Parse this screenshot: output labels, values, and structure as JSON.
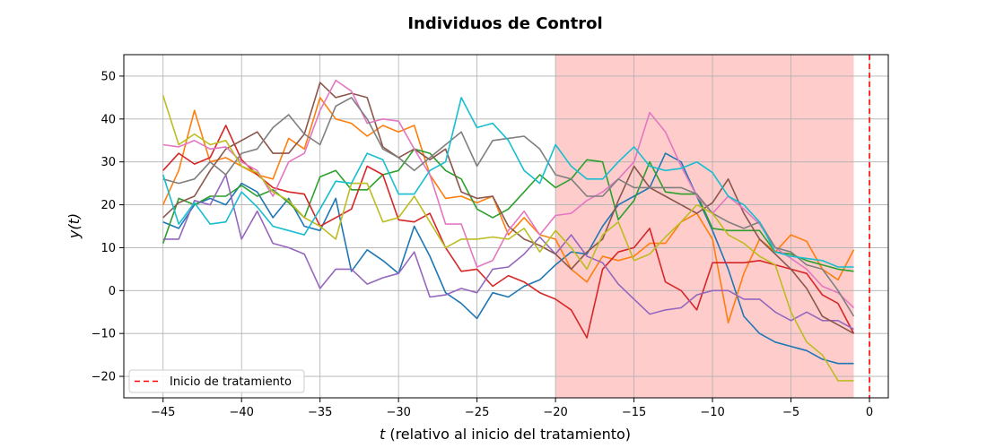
{
  "chart_data": {
    "type": "line",
    "title": "Individuos de Control",
    "xlabel_var": "t",
    "xlabel_rest": " (relativo al inicio del tratamiento)",
    "ylabel": "y(t)",
    "xlim": [
      -47.5,
      1.2
    ],
    "ylim": [
      -25,
      55
    ],
    "xticks": [
      -45,
      -40,
      -35,
      -30,
      -25,
      -20,
      -15,
      -10,
      -5,
      0
    ],
    "yticks": [
      -20,
      -10,
      0,
      10,
      20,
      30,
      40,
      50
    ],
    "grid": true,
    "treatment_region": [
      -20,
      -1
    ],
    "treatment_start": 0,
    "legend": {
      "position": "lower-left",
      "label": "Inicio de tratamiento"
    },
    "x": [
      -45,
      -44,
      -43,
      -42,
      -41,
      -40,
      -39,
      -38,
      -37,
      -36,
      -35,
      -34,
      -33,
      -32,
      -31,
      -30,
      -29,
      -28,
      -27,
      -26,
      -25,
      -24,
      -23,
      -22,
      -21,
      -20,
      -19,
      -18,
      -17,
      -16,
      -15,
      -14,
      -13,
      -12,
      -11,
      -10,
      -9,
      -8,
      -7,
      -6,
      -5,
      -4,
      -3,
      -2,
      -1
    ],
    "series": [
      {
        "color": "#1f77b4",
        "values": [
          16,
          14.5,
          20,
          21.5,
          20,
          25,
          23,
          17,
          21.5,
          15,
          14,
          21.5,
          4.5,
          9.5,
          7,
          4,
          15,
          8,
          -0.5,
          -3,
          -6.5,
          -0.5,
          -1.5,
          1,
          2.5,
          6,
          9,
          8.5,
          15,
          20,
          22,
          24,
          32,
          30,
          22,
          14,
          5,
          -6,
          -10,
          -12,
          -13,
          -14,
          -16,
          -17,
          -17
        ]
      },
      {
        "color": "#ff7f0e",
        "values": [
          20,
          28,
          42,
          30,
          31,
          29,
          27,
          26,
          35.5,
          33,
          45,
          40,
          39,
          36,
          38.5,
          37,
          38.5,
          27,
          21.5,
          22,
          20.5,
          22,
          13,
          17,
          13,
          12,
          5,
          2,
          8,
          7,
          8,
          11,
          11,
          16,
          18,
          12,
          -7.5,
          4,
          12,
          9,
          13,
          11.5,
          5,
          2.5,
          9.5
        ]
      },
      {
        "color": "#2ca02c",
        "values": [
          11,
          21.5,
          20,
          22,
          22,
          24.5,
          22,
          23.5,
          20.5,
          17,
          26.5,
          28,
          23.5,
          23.5,
          27,
          28,
          33,
          32,
          28,
          26,
          19,
          17,
          19,
          23,
          27,
          24,
          26,
          30.5,
          30,
          16.5,
          21,
          30,
          23,
          22.5,
          22.5,
          14.5,
          14,
          14,
          14,
          9,
          8.5,
          7,
          6,
          5,
          4.5
        ]
      },
      {
        "color": "#d62728",
        "values": [
          28,
          32,
          29.5,
          31,
          38.5,
          30.5,
          27,
          24,
          23,
          22.5,
          15,
          17,
          19,
          29,
          27,
          16.5,
          16,
          18,
          10,
          4.5,
          5,
          1,
          3.5,
          2,
          -0.5,
          -2,
          -4.5,
          -11,
          5,
          9,
          10,
          14.5,
          2,
          0,
          -4.5,
          6.5,
          6.5,
          6.5,
          7,
          6,
          5,
          4,
          -1,
          -3,
          -10
        ]
      },
      {
        "color": "#9467bd",
        "values": [
          12,
          12,
          21,
          20,
          27,
          12,
          18.5,
          11,
          10,
          8.5,
          0.5,
          5,
          5,
          1.5,
          3,
          4,
          9,
          -1.5,
          -1,
          0.5,
          -0.5,
          5,
          5.5,
          8.5,
          12.5,
          8.5,
          13,
          8,
          6.5,
          1.5,
          -2,
          -5.5,
          -4.5,
          -4,
          -1,
          0,
          0,
          -2,
          -2,
          -5,
          -7,
          -5,
          -7,
          -7,
          -9
        ]
      },
      {
        "color": "#8c564b",
        "values": [
          17,
          20.5,
          22,
          28,
          33,
          35,
          37,
          32,
          32,
          36.5,
          48.5,
          45,
          46,
          45,
          33.5,
          31,
          33,
          30.5,
          33,
          23,
          21.5,
          22,
          15,
          12,
          10.5,
          8.5,
          5,
          9,
          12,
          21,
          29,
          24,
          22,
          20,
          18,
          20.5,
          26,
          18,
          12,
          8.5,
          5,
          0.5,
          -6,
          -8,
          -10
        ]
      },
      {
        "color": "#e377c2",
        "values": [
          34,
          33.5,
          35,
          33,
          33.5,
          30,
          28,
          22,
          30,
          32,
          42,
          49,
          46.5,
          39,
          40,
          39.5,
          33,
          27,
          15.5,
          15.5,
          5.5,
          7,
          14,
          18.5,
          13,
          17.5,
          18,
          21,
          23,
          26,
          30,
          41.5,
          37,
          29,
          22,
          18,
          22,
          19,
          15.5,
          10,
          7.5,
          5,
          1,
          -0.5,
          -4
        ]
      },
      {
        "color": "#7f7f7f",
        "values": [
          26,
          25,
          26,
          30,
          27,
          32,
          33,
          38,
          41,
          36.5,
          34,
          43,
          45,
          40,
          33,
          31,
          28,
          31,
          34,
          37,
          29,
          35,
          35.5,
          36,
          33,
          27,
          26,
          22,
          22,
          26,
          24,
          24,
          24,
          24,
          22.5,
          18,
          16,
          14.5,
          16,
          10,
          9,
          6,
          5,
          0,
          -6
        ]
      },
      {
        "color": "#bcbd22",
        "values": [
          45.5,
          34,
          36.5,
          34,
          35,
          29,
          27.5,
          23,
          21,
          17,
          15,
          12,
          25,
          25,
          16,
          17,
          22,
          16,
          10,
          12,
          12,
          12.5,
          12,
          14.5,
          9,
          14,
          10,
          5,
          13,
          16,
          7,
          8.5,
          12.5,
          16,
          20,
          18,
          13,
          11,
          8,
          6,
          -5,
          -12,
          -15,
          -21,
          -21
        ]
      },
      {
        "color": "#17becf",
        "values": [
          27,
          15.5,
          20.5,
          15.5,
          16,
          23,
          19.5,
          15,
          14,
          13,
          19,
          25.5,
          25,
          32,
          30.5,
          22.5,
          22.5,
          28,
          30,
          45,
          38,
          39,
          35,
          28,
          25,
          34,
          29,
          26,
          26,
          30,
          33.5,
          29,
          28,
          28.5,
          30,
          27.5,
          22,
          20,
          16,
          9,
          8,
          7.5,
          7,
          5.5,
          5.5
        ]
      }
    ]
  }
}
